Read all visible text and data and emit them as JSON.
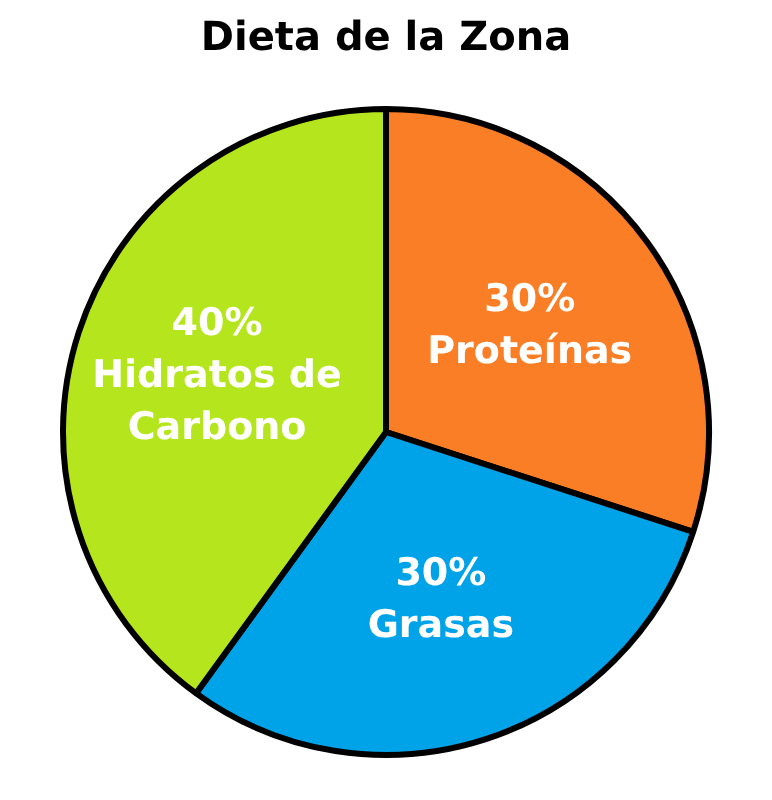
{
  "chart_data": {
    "type": "pie",
    "title": "Dieta de la Zona",
    "categories": [
      "Proteínas",
      "Grasas",
      "Hidratos de Carbono"
    ],
    "values": [
      30,
      30,
      40
    ],
    "colors": [
      "#f97e26",
      "#00a2e8",
      "#b5e61d"
    ],
    "value_labels": [
      "30%",
      "30%",
      "40%"
    ],
    "legend": false
  }
}
